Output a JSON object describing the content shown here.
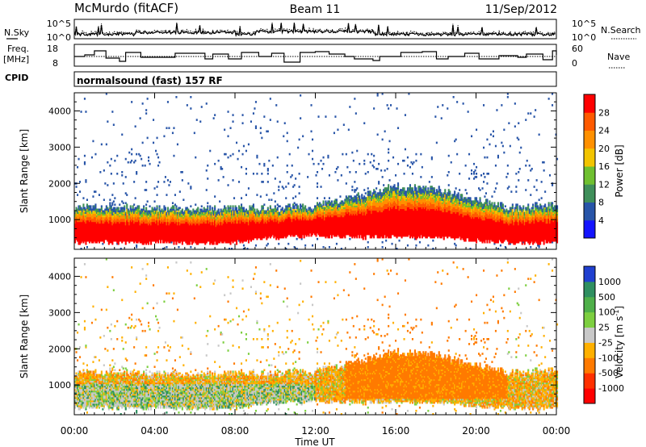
{
  "header": {
    "station": "McMurdo (fitACF)",
    "beam": "Beam 11",
    "date": "11/Sep/2012"
  },
  "labels": {
    "nsky": "N.Sky",
    "freq_line1": "Freq.",
    "freq_line2": "[MHz]",
    "cpid": "CPID",
    "nsearch": "N.Search",
    "nave": "Nave",
    "cpid_value": "normalsound (fast) 157 RF",
    "nsky_top": "10^5",
    "nsky_bottom": "10^0",
    "nsearch_top": "10^5",
    "nsearch_bottom": "10^0",
    "freq_top": "18",
    "freq_bottom": "8",
    "nave_top": "60",
    "nave_bottom": "0"
  },
  "chart_data": [
    {
      "type": "heatmap",
      "name": "power",
      "ylabel": "Slant Range [km]",
      "ylim": [
        180,
        4500
      ],
      "ytick_labels": [
        "1000",
        "2000",
        "3000",
        "4000"
      ],
      "ytick_values": [
        1000,
        2000,
        3000,
        4000
      ],
      "colorbar_label": "Power [dB]",
      "colorbar_ticks": [
        "4",
        "8",
        "12",
        "16",
        "20",
        "24",
        "28"
      ],
      "colors": [
        "#1414ff",
        "#2855a8",
        "#3f8f5a",
        "#6fc030",
        "#f2c400",
        "#ff9000",
        "#ff5a00",
        "#ff0000"
      ],
      "x_unit": "hours UT",
      "xlim": [
        0,
        24
      ],
      "echo_band": {
        "hours": [
          0,
          2,
          4,
          6,
          8,
          10,
          12,
          14,
          16,
          18,
          20,
          22,
          24
        ],
        "bottom_km": [
          350,
          350,
          350,
          340,
          350,
          500,
          550,
          500,
          500,
          500,
          400,
          350,
          350
        ],
        "top_km": [
          1350,
          1300,
          1300,
          1250,
          1300,
          1300,
          1350,
          1600,
          1900,
          1800,
          1500,
          1300,
          1400
        ]
      }
    },
    {
      "type": "heatmap",
      "name": "velocity",
      "ylabel": "Slant Range [km]",
      "ylim": [
        180,
        4500
      ],
      "ytick_labels": [
        "1000",
        "2000",
        "3000",
        "4000"
      ],
      "ytick_values": [
        1000,
        2000,
        3000,
        4000
      ],
      "colorbar_label": "Velocity [m s",
      "colorbar_label_sup": "-1",
      "colorbar_label_end": "]",
      "colorbar_ticks": [
        "1000",
        "500",
        "100",
        "25",
        "-25",
        "-100",
        "-500",
        "-1000"
      ],
      "colors": [
        "#2040d0",
        "#2f8f60",
        "#4fb04a",
        "#7dcf40",
        "#c8c8c8",
        "#ffb000",
        "#ff7a00",
        "#ff3000",
        "#ff0000"
      ],
      "xlabel": "Time UT",
      "x_unit": "hours UT",
      "xlim": [
        0,
        24
      ],
      "xtick_labels": [
        "00:00",
        "04:00",
        "08:00",
        "12:00",
        "16:00",
        "20:00",
        "00:00"
      ],
      "xtick_values": [
        0,
        4,
        8,
        12,
        16,
        20,
        24
      ]
    }
  ]
}
